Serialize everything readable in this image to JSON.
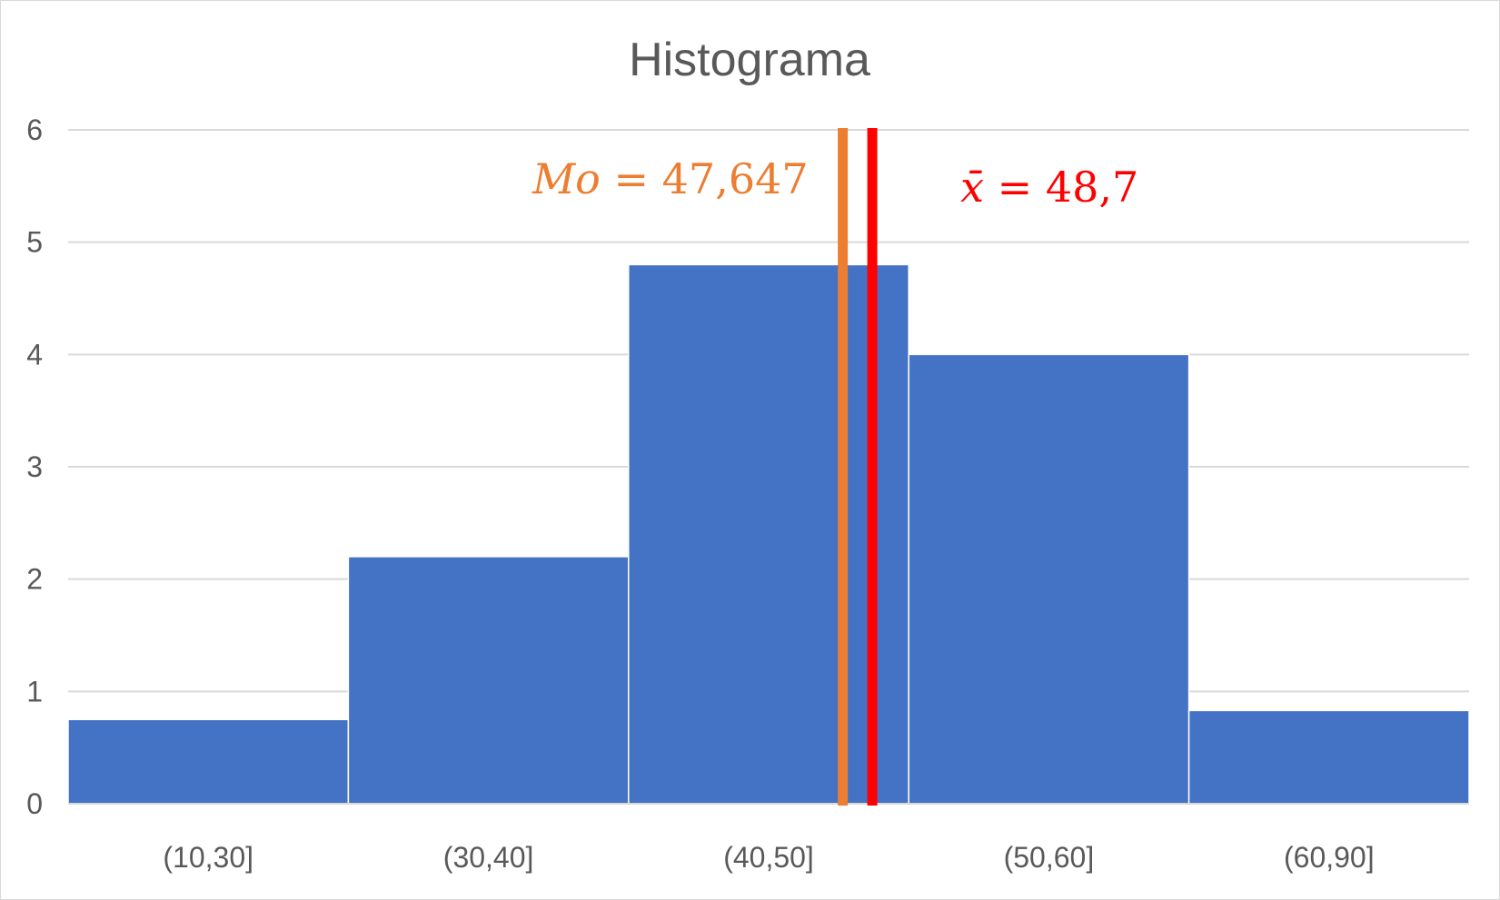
{
  "chart_data": {
    "type": "bar",
    "title": "Histograma",
    "xlabel": "",
    "ylabel": "",
    "categories": [
      "(10,30]",
      "(30,40]",
      "(40,50]",
      "(50,60]",
      "(60,90]"
    ],
    "values": [
      0.75,
      2.2,
      4.8,
      4.0,
      0.83
    ],
    "ylim": [
      0,
      6
    ],
    "yticks": [
      "0",
      "1",
      "2",
      "3",
      "4",
      "5",
      "6"
    ],
    "grid": true,
    "legend": "none",
    "bar_color": "#4472C4",
    "annotations": [
      {
        "name": "mode",
        "label": "Mo = 47,647",
        "label_var": "Mo",
        "label_value": " = 47,647",
        "x_value": 47.647,
        "color": "#ED7D31"
      },
      {
        "name": "mean",
        "label": "x̄ = 48,7",
        "label_var": "x̄",
        "label_value": " = 48,7",
        "x_value": 48.7,
        "color": "#FF0000"
      }
    ]
  }
}
